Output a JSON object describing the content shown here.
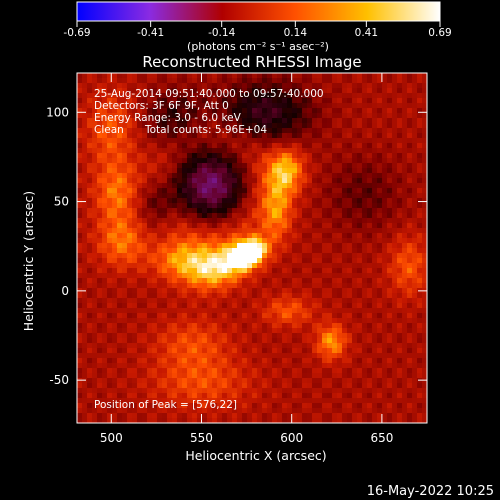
{
  "chart_data": {
    "type": "heatmap",
    "title": "Reconstructed RHESSI Image",
    "xlabel": "Heliocentric X (arcsec)",
    "ylabel": "Heliocentric Y (arcsec)",
    "xlim": [
      481,
      675
    ],
    "ylim": [
      -74,
      122
    ],
    "x_ticks": [
      500,
      550,
      600,
      650
    ],
    "y_ticks": [
      -50,
      0,
      50,
      100
    ],
    "colorbar": {
      "range": [
        -0.69,
        0.69
      ],
      "ticks": [
        "-0.69",
        "-0.41",
        "-0.14",
        "0.14",
        "0.41",
        "0.69"
      ],
      "tick_values": [
        -0.69,
        -0.41,
        -0.14,
        0.14,
        0.41,
        0.69
      ],
      "label": "(photons cm⁻² s⁻¹ asec⁻²)",
      "colormap": "blue-purple-red-orange-yellow-white",
      "colors": [
        "#0000ff",
        "#8a2be2",
        "#b00000",
        "#ff5000",
        "#ffc000",
        "#ffffff"
      ]
    },
    "annotations": [
      "25-Aug-2014 09:51:40.000 to 09:57:40.000",
      "Detectors: 3F 6F 9F, Att 0",
      "Energy Range: 3.0 - 6.0 keV",
      "Clean",
      "Total counts: 5.96E+04"
    ],
    "peak_label": "Position of Peak = [576,22]",
    "peak": {
      "x": 576,
      "y": 22,
      "value": 0.69
    },
    "sources": [
      {
        "x": 576,
        "y": 22,
        "amp": 0.69,
        "sx": 7,
        "sy": 5,
        "angle": 25
      },
      {
        "x": 560,
        "y": 14,
        "amp": 0.35,
        "sx": 12,
        "sy": 8,
        "angle": 20
      },
      {
        "x": 597,
        "y": 68,
        "amp": 0.33,
        "sx": 7,
        "sy": 9,
        "angle": 0
      },
      {
        "x": 592,
        "y": 45,
        "amp": 0.24,
        "sx": 6,
        "sy": 12,
        "angle": 0
      },
      {
        "x": 540,
        "y": 18,
        "amp": 0.28,
        "sx": 12,
        "sy": 8,
        "angle": 0
      },
      {
        "x": 622,
        "y": -27,
        "amp": 0.28,
        "sx": 6,
        "sy": 7,
        "angle": 0
      },
      {
        "x": 503,
        "y": 55,
        "amp": 0.22,
        "sx": 9,
        "sy": 12,
        "angle": 0
      },
      {
        "x": 506,
        "y": 28,
        "amp": 0.22,
        "sx": 10,
        "sy": 10,
        "angle": 0
      },
      {
        "x": 500,
        "y": 90,
        "amp": 0.18,
        "sx": 10,
        "sy": 15,
        "angle": 0
      },
      {
        "x": 665,
        "y": 15,
        "amp": 0.18,
        "sx": 8,
        "sy": 12,
        "angle": 0
      },
      {
        "x": 598,
        "y": -10,
        "amp": 0.18,
        "sx": 10,
        "sy": 6,
        "angle": 0
      },
      {
        "x": 545,
        "y": -28,
        "amp": 0.16,
        "sx": 15,
        "sy": 10,
        "angle": 0
      },
      {
        "x": 550,
        "y": -50,
        "amp": 0.16,
        "sx": 20,
        "sy": 10,
        "angle": 0
      }
    ],
    "dark_regions": [
      {
        "x": 555,
        "y": 60,
        "amp": -0.45,
        "sx": 14,
        "sy": 14
      },
      {
        "x": 585,
        "y": 100,
        "amp": -0.3,
        "sx": 18,
        "sy": 12
      },
      {
        "x": 535,
        "y": 95,
        "amp": -0.2,
        "sx": 12,
        "sy": 12
      },
      {
        "x": 525,
        "y": 50,
        "amp": -0.2,
        "sx": 8,
        "sy": 10
      },
      {
        "x": 640,
        "y": 55,
        "amp": -0.12,
        "sx": 15,
        "sy": 15
      }
    ],
    "ring": {
      "cx": 555,
      "cy": 60,
      "r": 28,
      "amp": 0.12,
      "width": 9
    },
    "background_level": 0.22,
    "ripple_amplitude": 0.06
  },
  "footer": {
    "date": "16-May-2022 10:25"
  }
}
